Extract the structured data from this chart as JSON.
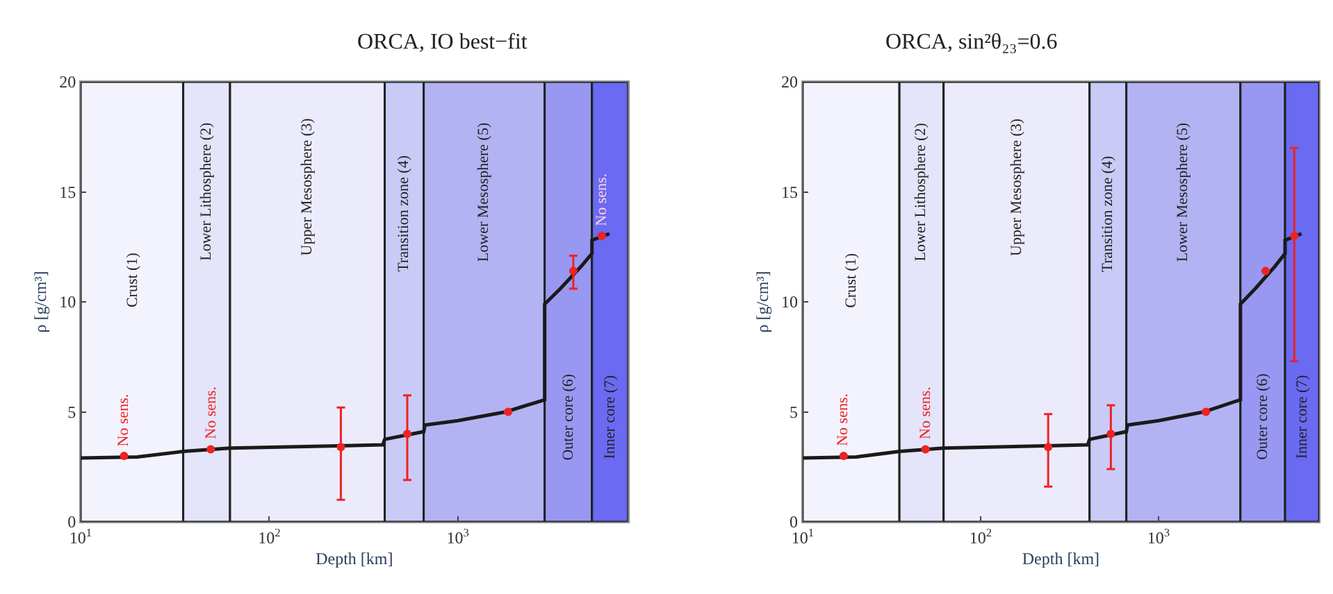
{
  "chart_data": [
    {
      "type": "line",
      "title": "ORCA, IO best−fit",
      "xlabel": "Depth [km]",
      "ylabel": "ρ [g/cm³]",
      "log": "x",
      "xlim": [
        10,
        8000
      ],
      "xticks": [
        {
          "value": 10,
          "label": "10$^{1}$"
        },
        {
          "value": 100,
          "label": "10$^{2}$"
        },
        {
          "value": 1000,
          "label": "10$^{3}$"
        }
      ],
      "ylim": [
        0,
        20
      ],
      "yticks": [
        0,
        5,
        10,
        15,
        20
      ],
      "bands": [
        {
          "axis": "x",
          "from": 10,
          "to": 35,
          "label": "Crust (1)",
          "color": "#f3f3fd"
        },
        {
          "axis": "x",
          "from": 35,
          "to": 62,
          "label": "Lower Lithosphere (2)",
          "color": "#e4e4fa"
        },
        {
          "axis": "x",
          "from": 62,
          "to": 410,
          "label": "Upper Mesosphere (3)",
          "color": "#ebebfc"
        },
        {
          "axis": "x",
          "from": 410,
          "to": 660,
          "label": "Transition zone (4)",
          "color": "#cacaf7"
        },
        {
          "axis": "x",
          "from": 660,
          "to": 2890,
          "label": "Lower Mesosphere (5)",
          "color": "#b3b3f3"
        },
        {
          "axis": "x",
          "from": 2890,
          "to": 5150,
          "label": "Outer core (6)",
          "color": "#9898f2"
        },
        {
          "axis": "x",
          "from": 5150,
          "to": 8000,
          "label": "Inner core (7)",
          "color": "#6a6af2"
        }
      ],
      "series": [
        {
          "color": "#1a1a1a",
          "marker": "none",
          "line_style": "solid",
          "x": [
            10,
            20,
            35,
            62,
            400,
            410,
            660,
            670,
            1000,
            1800,
            2890,
            2890,
            3500,
            4500,
            5150,
            5150,
            6371
          ],
          "values": [
            2.9,
            2.95,
            3.2,
            3.35,
            3.5,
            3.75,
            4.1,
            4.4,
            4.6,
            5.0,
            5.55,
            9.9,
            10.6,
            11.6,
            12.2,
            12.8,
            13.1
          ]
        },
        {
          "type": "scatter",
          "color": "#ee2222",
          "marker": "circle",
          "x": [
            17,
            49,
            240,
            540,
            1850,
            4100,
            5800
          ],
          "values": [
            3.0,
            3.3,
            3.4,
            4.0,
            5.0,
            11.4,
            13.0
          ],
          "errors": [
            null,
            null,
            [
              1.0,
              5.2
            ],
            [
              1.9,
              5.75
            ],
            null,
            [
              10.6,
              12.1
            ],
            null
          ]
        }
      ],
      "annotations": [
        "No sens.",
        "No sens.",
        "No sens."
      ]
    },
    {
      "type": "line",
      "title": "ORCA, sin²θ₂₃=0.6",
      "xlabel": "Depth [km]",
      "ylabel": "ρ [g/cm³]",
      "log": "x",
      "xlim": [
        10,
        8000
      ],
      "xticks": [
        {
          "value": 10,
          "label": "10$^{1}$"
        },
        {
          "value": 100,
          "label": "10$^{2}$"
        },
        {
          "value": 1000,
          "label": "10$^{3}$"
        }
      ],
      "ylim": [
        0,
        20
      ],
      "yticks": [
        0,
        5,
        10,
        15,
        20
      ],
      "bands": [
        {
          "axis": "x",
          "from": 10,
          "to": 35,
          "label": "Crust (1)",
          "color": "#f3f3fd"
        },
        {
          "axis": "x",
          "from": 35,
          "to": 62,
          "label": "Lower Lithosphere (2)",
          "color": "#e4e4fa"
        },
        {
          "axis": "x",
          "from": 62,
          "to": 410,
          "label": "Upper Mesosphere (3)",
          "color": "#ebebfc"
        },
        {
          "axis": "x",
          "from": 410,
          "to": 660,
          "label": "Transition zone (4)",
          "color": "#cacaf7"
        },
        {
          "axis": "x",
          "from": 660,
          "to": 2890,
          "label": "Lower Mesosphere (5)",
          "color": "#b3b3f3"
        },
        {
          "axis": "x",
          "from": 2890,
          "to": 5150,
          "label": "Outer core (6)",
          "color": "#9898f2"
        },
        {
          "axis": "x",
          "from": 5150,
          "to": 8000,
          "label": "Inner core (7)",
          "color": "#6a6af2"
        }
      ],
      "series": [
        {
          "color": "#1a1a1a",
          "marker": "none",
          "line_style": "solid",
          "x": [
            10,
            20,
            35,
            62,
            400,
            410,
            660,
            670,
            1000,
            1800,
            2890,
            2890,
            3500,
            4500,
            5150,
            5150,
            6371
          ],
          "values": [
            2.9,
            2.95,
            3.2,
            3.35,
            3.5,
            3.75,
            4.1,
            4.4,
            4.6,
            5.0,
            5.55,
            9.9,
            10.6,
            11.6,
            12.2,
            12.8,
            13.1
          ]
        },
        {
          "type": "scatter",
          "color": "#ee2222",
          "marker": "circle",
          "x": [
            17,
            49,
            240,
            540,
            1850,
            4000,
            5800
          ],
          "values": [
            3.0,
            3.3,
            3.4,
            4.0,
            5.0,
            11.4,
            13.0
          ],
          "errors": [
            null,
            null,
            [
              1.6,
              4.9
            ],
            [
              2.4,
              5.3
            ],
            null,
            null,
            [
              7.3,
              17.0
            ]
          ]
        }
      ],
      "annotations": [
        "No sens.",
        "No sens."
      ]
    }
  ]
}
